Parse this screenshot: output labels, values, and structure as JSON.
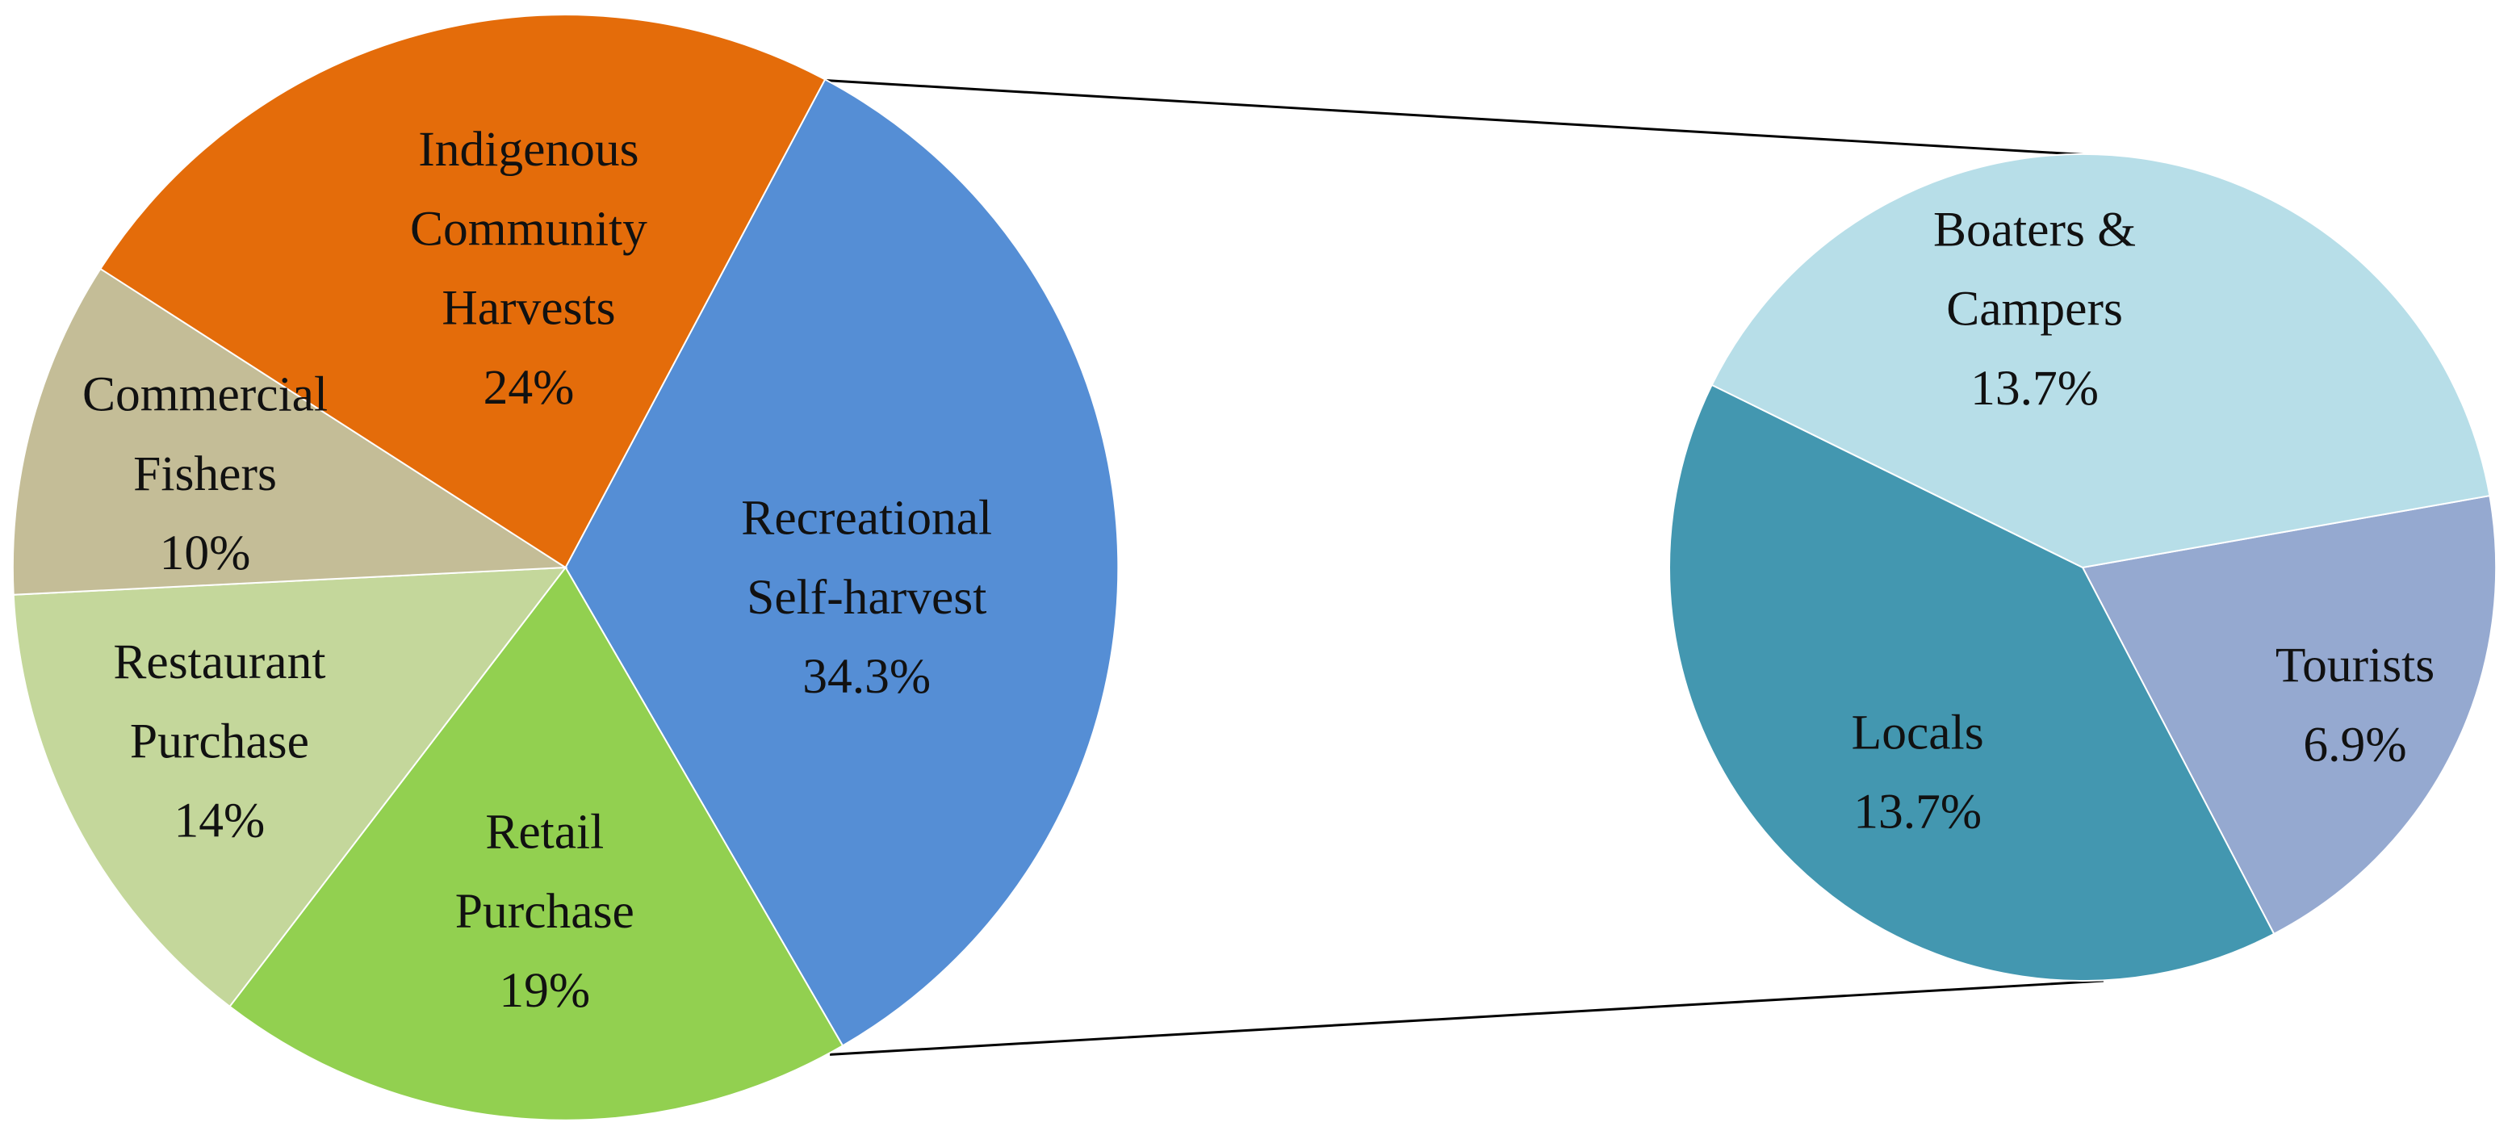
{
  "chart_data": [
    {
      "type": "pie",
      "categories": [
        [
          "Recreational",
          "Self-harvest"
        ],
        [
          "Retail",
          "Purchase"
        ],
        [
          "Restaurant",
          "Purchase"
        ],
        [
          "Commercial",
          "Fishers"
        ],
        [
          "Indigenous",
          "Community",
          "Harvests"
        ]
      ],
      "values": [
        34.3,
        19,
        14,
        10,
        24
      ],
      "value_labels": [
        "34.3%",
        "19%",
        "14%",
        "10%",
        "24%"
      ],
      "colors": [
        "#558ed5",
        "#92d050",
        "#c4d79b",
        "#c4bd97",
        "#e46c0a"
      ]
    },
    {
      "type": "pie",
      "categories": [
        [
          "Tourists"
        ],
        [
          "Locals"
        ],
        [
          "Boaters &",
          "Campers"
        ]
      ],
      "values": [
        6.9,
        13.7,
        13.7
      ],
      "value_labels": [
        "6.9%",
        "13.7%",
        "13.7%"
      ],
      "colors": [
        "#95a9d0",
        "#4397b0",
        "#b7dee8"
      ]
    }
  ]
}
